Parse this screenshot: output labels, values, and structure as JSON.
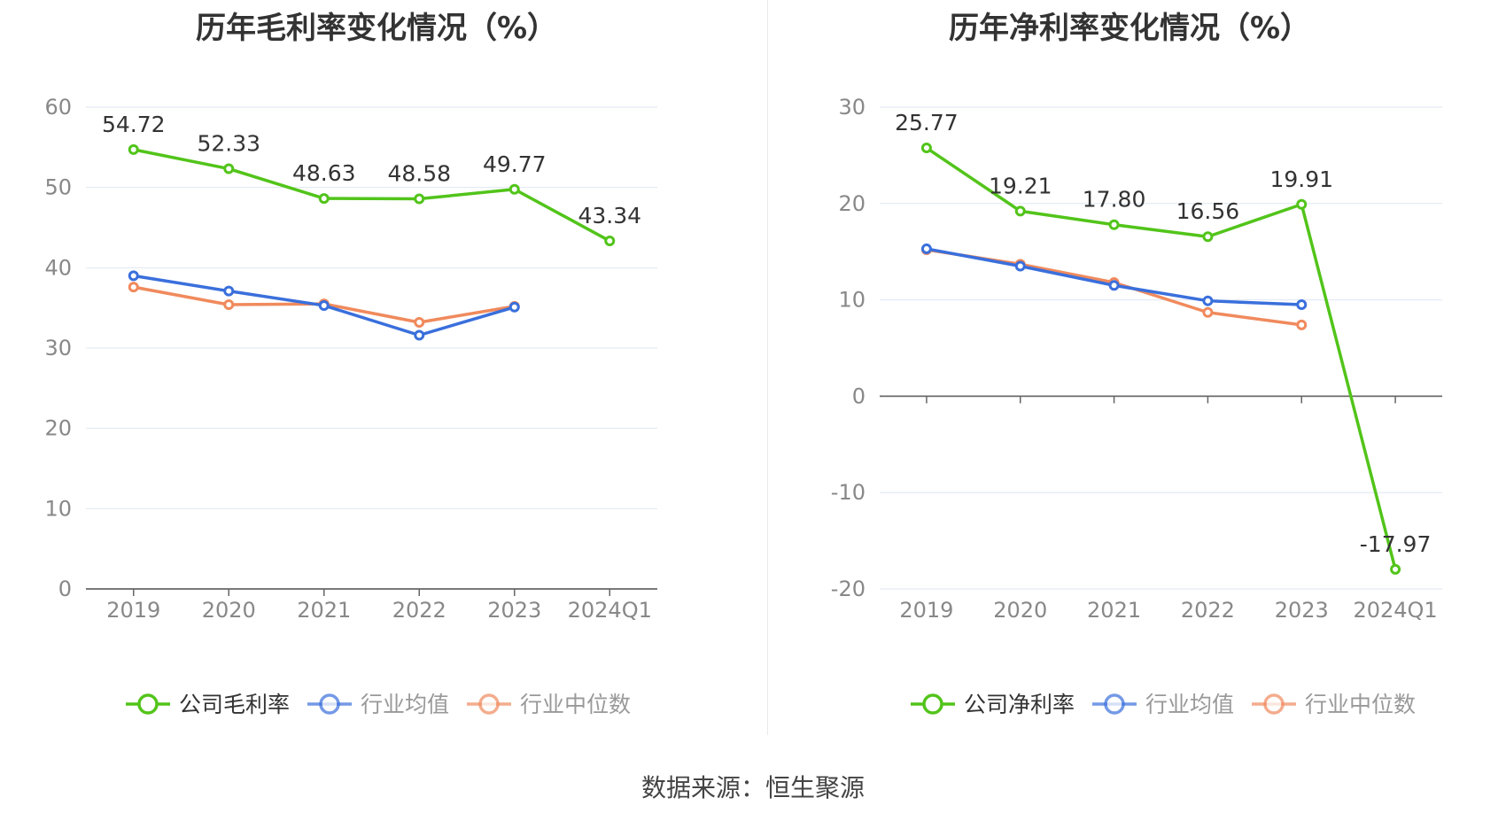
{
  "footer": {
    "source": "数据来源：恒生聚源"
  },
  "colors": {
    "company": "#52c41a",
    "avg": "#3a6fdc",
    "median": "#f08a5d",
    "grid": "#dfe6f2",
    "axis": "#666666",
    "tick_text": "#888888"
  },
  "chart_data": [
    {
      "type": "line",
      "title": "历年毛利率变化情况（%）",
      "categories": [
        "2019",
        "2020",
        "2021",
        "2022",
        "2023",
        "2024Q1"
      ],
      "ylim": [
        0,
        60
      ],
      "yticks": [
        0,
        10,
        20,
        30,
        40,
        50,
        60
      ],
      "grid": true,
      "legend_position": "bottom",
      "series": [
        {
          "name": "公司毛利率",
          "color": "#52c41a",
          "values": [
            54.72,
            52.33,
            48.63,
            48.58,
            49.77,
            43.34
          ],
          "labels": [
            "54.72",
            "52.33",
            "48.63",
            "48.58",
            "49.77",
            "43.34"
          ]
        },
        {
          "name": "行业均值",
          "color": "#3a6fdc",
          "values": [
            39.0,
            37.1,
            35.3,
            31.6,
            35.1,
            null
          ]
        },
        {
          "name": "行业中位数",
          "color": "#f08a5d",
          "values": [
            37.6,
            35.4,
            35.5,
            33.2,
            35.2,
            null
          ]
        }
      ]
    },
    {
      "type": "line",
      "title": "历年净利率变化情况（%）",
      "categories": [
        "2019",
        "2020",
        "2021",
        "2022",
        "2023",
        "2024Q1"
      ],
      "ylim": [
        -20,
        30
      ],
      "yticks": [
        -20,
        -10,
        0,
        10,
        20,
        30
      ],
      "grid": true,
      "legend_position": "bottom",
      "series": [
        {
          "name": "公司净利率",
          "color": "#52c41a",
          "values": [
            25.77,
            19.21,
            17.8,
            16.56,
            19.91,
            -17.97
          ],
          "labels": [
            "25.77",
            "19.21",
            "17.80",
            "16.56",
            "19.91",
            "-17.97"
          ]
        },
        {
          "name": "行业均值",
          "color": "#3a6fdc",
          "values": [
            15.3,
            13.5,
            11.5,
            9.9,
            9.5,
            null
          ]
        },
        {
          "name": "行业中位数",
          "color": "#f08a5d",
          "values": [
            15.2,
            13.7,
            11.8,
            8.7,
            7.4,
            null
          ]
        }
      ]
    }
  ]
}
